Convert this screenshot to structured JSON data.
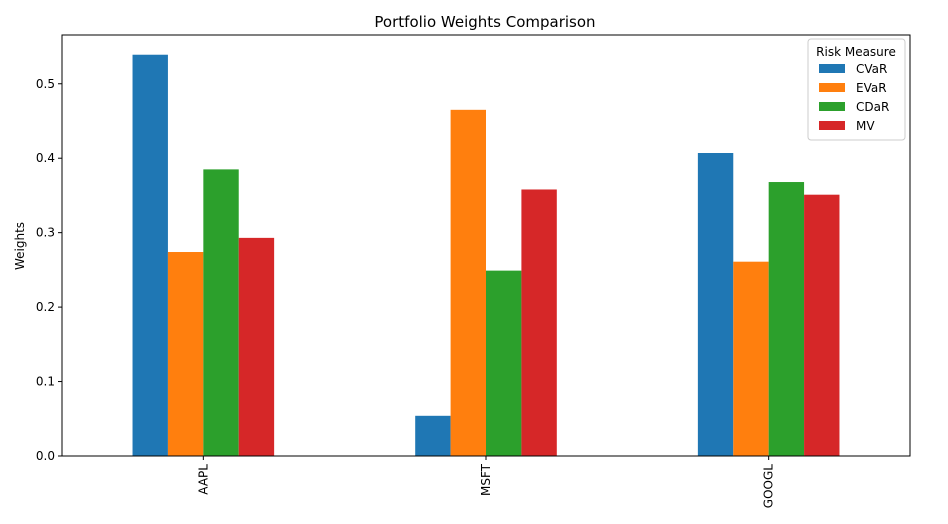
{
  "chart_data": {
    "type": "bar",
    "title": "Portfolio Weights Comparison",
    "xlabel": "",
    "ylabel": "Weights",
    "categories": [
      "AAPL",
      "MSFT",
      "GOOGL"
    ],
    "series": [
      {
        "name": "CVaR",
        "color": "#1f77b4",
        "values": [
          0.539,
          0.054,
          0.407
        ]
      },
      {
        "name": "EVaR",
        "color": "#ff7f0e",
        "values": [
          0.274,
          0.465,
          0.261
        ]
      },
      {
        "name": "CDaR",
        "color": "#2ca02c",
        "values": [
          0.385,
          0.249,
          0.368
        ]
      },
      {
        "name": "MV",
        "color": "#d62728",
        "values": [
          0.293,
          0.358,
          0.351
        ]
      }
    ],
    "ylim": [
      0,
      0.5655
    ],
    "yticks": [
      "0.0",
      "0.1",
      "0.2",
      "0.3",
      "0.4",
      "0.5"
    ],
    "legend": {
      "title": "Risk Measure",
      "placement": "top-right"
    },
    "grid": false
  }
}
